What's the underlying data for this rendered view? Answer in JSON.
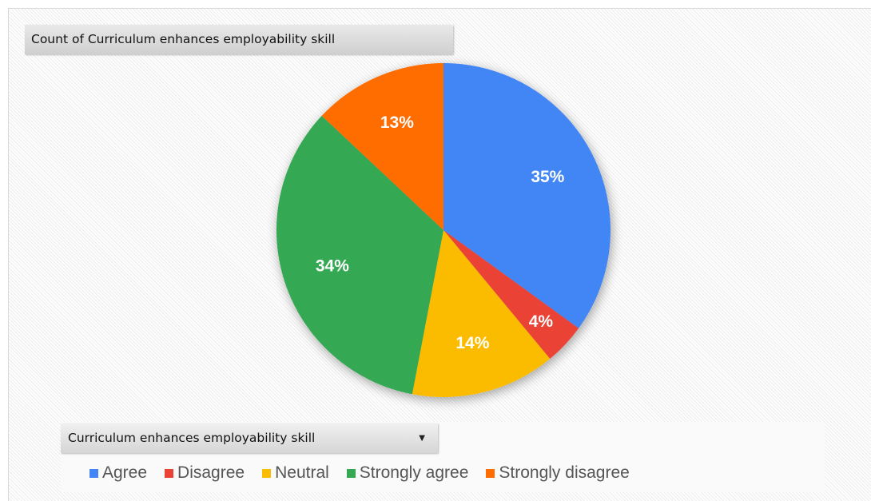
{
  "chart_data": {
    "type": "pie",
    "title": "Count of Curriculum enhances  employability skill",
    "field_label": "Curriculum enhances  employability skill",
    "legend_position": "bottom",
    "slices": [
      {
        "label": "Agree",
        "value": 35,
        "display": "35%",
        "color": "#4285f4"
      },
      {
        "label": "Disagree",
        "value": 4,
        "display": "4%",
        "color": "#ea4335"
      },
      {
        "label": "Neutral",
        "value": 14,
        "display": "14%",
        "color": "#fbbc04"
      },
      {
        "label": "Strongly agree",
        "value": 34,
        "display": "34%",
        "color": "#34a853"
      },
      {
        "label": "Strongly disagree",
        "value": 13,
        "display": "13%",
        "color": "#ff6d01"
      }
    ]
  },
  "icons": {
    "dropdown": "dropdown-arrow-icon"
  }
}
